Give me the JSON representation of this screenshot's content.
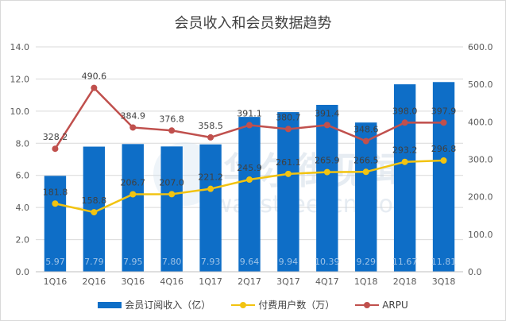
{
  "chart_data": {
    "type": "bar+line",
    "title": "会员收入和会员数据趋势",
    "categories": [
      "1Q16",
      "2Q16",
      "3Q16",
      "4Q16",
      "1Q17",
      "2Q17",
      "3Q17",
      "4Q17",
      "1Q18",
      "2Q18",
      "3Q18"
    ],
    "left_axis": {
      "ylim": [
        0,
        14
      ],
      "ticks": [
        "0.0",
        "2.0",
        "4.0",
        "6.0",
        "8.0",
        "10.0",
        "12.0",
        "14.0"
      ]
    },
    "right_axis": {
      "ylim": [
        0,
        600
      ],
      "ticks": [
        "0.0",
        "100.0",
        "200.0",
        "300.0",
        "400.0",
        "500.0",
        "600.0"
      ]
    },
    "grid": true,
    "legend_position": "bottom",
    "series": [
      {
        "name": "会员订阅收入（亿）",
        "kind": "bar",
        "axis": "left",
        "color": "#0e6ec7",
        "values": [
          5.97,
          7.79,
          7.95,
          7.8,
          7.93,
          9.64,
          9.94,
          10.39,
          9.29,
          11.67,
          11.81
        ],
        "labels": [
          "5.97",
          "7.79",
          "7.95",
          "7.80",
          "7.93",
          "9.64",
          "9.94",
          "10.39",
          "9.29",
          "11.67",
          "11.81"
        ]
      },
      {
        "name": "付费用户数（万）",
        "kind": "line",
        "axis": "right",
        "color": "#f2c310",
        "values": [
          181.8,
          158.8,
          206.7,
          207.0,
          221.2,
          245.9,
          261.1,
          265.9,
          266.5,
          293.2,
          296.8
        ],
        "labels": [
          "181.8",
          "158.8",
          "206.7",
          "207.0",
          "221.2",
          "245.9",
          "261.1",
          "265.9",
          "266.5",
          "293.2",
          "296.8"
        ]
      },
      {
        "name": "ARPU",
        "kind": "line",
        "axis": "right",
        "color": "#c0504d",
        "values": [
          328.2,
          490.6,
          384.9,
          376.8,
          358.5,
          391.1,
          380.7,
          391.4,
          348.6,
          398.0,
          397.9
        ],
        "labels": [
          "328.2",
          "490.6",
          "384.9",
          "376.8",
          "358.5",
          "391.1",
          "380.7",
          "391.4",
          "348.6",
          "398.0",
          "397.9"
        ]
      }
    ],
    "watermark": "华尔街见闻 wallstreetcn.com"
  }
}
